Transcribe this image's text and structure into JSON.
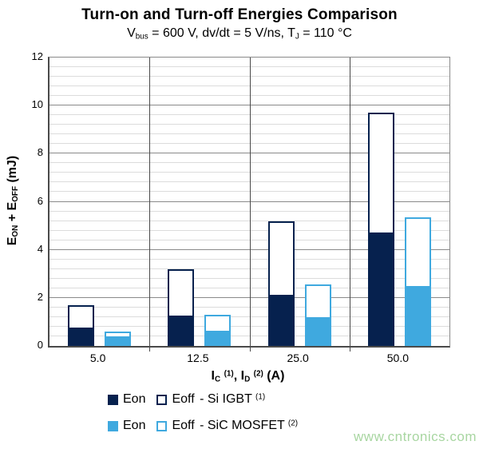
{
  "title": "Turn-on and Turn-off Energies Comparison",
  "subtitle": {
    "t1": "V",
    "sub1": "bus",
    "t2": " = 600 V, dv/dt = 5 V/ns, T",
    "sub2": "J",
    "t3": " = 110 °C"
  },
  "y_axis": {
    "t1": "E",
    "sub1": "ON",
    "t2": " + E",
    "sub2": "OFF",
    "t3": " (mJ)"
  },
  "x_axis": {
    "t1": "I",
    "sub1": "C",
    "sup1": "(1)",
    "t2": ", I",
    "sub2": "D",
    "sup2": "(2)",
    "t3": " (A)"
  },
  "legend": {
    "rows": [
      {
        "eon": "Eon",
        "eoff": "Eoff",
        "device": "- Si IGBT",
        "sup": "(1)"
      },
      {
        "eon": "Eon",
        "eoff": "Eoff",
        "device": "- SiC MOSFET",
        "sup": "(2)"
      }
    ]
  },
  "watermark": "www.cntronics.com",
  "colors": {
    "igbt_navy": "#06214e",
    "sic_blue": "#3fa9df",
    "minor_grid": "#dcdcdc",
    "major_grid": "#8a8a8a",
    "axis_line": "#4a4a4a",
    "watermark_green": "#a8d6a1"
  },
  "chart_data": {
    "type": "bar",
    "stacked": true,
    "title": "Turn-on and Turn-off Energies Comparison",
    "subtitle": "Vbus = 600 V, dv/dt = 5 V/ns, TJ = 110 °C",
    "xlabel": "IC (1), ID (2) (A)",
    "ylabel": "EON + EOFF (mJ)",
    "categories": [
      "5.0",
      "12.5",
      "25.0",
      "50.0"
    ],
    "series": [
      {
        "name": "Eon - Si IGBT",
        "style": "navy-fill",
        "values": [
          0.7,
          1.2,
          2.05,
          4.65
        ]
      },
      {
        "name": "Eoff - Si IGBT",
        "style": "navy-outline",
        "values": [
          1.0,
          2.0,
          3.15,
          5.05
        ]
      },
      {
        "name": "Eon - SiC MOSFET",
        "style": "blue-fill",
        "values": [
          0.33,
          0.57,
          1.12,
          2.42
        ]
      },
      {
        "name": "Eoff - SiC MOSFET",
        "style": "blue-outline",
        "values": [
          0.27,
          0.73,
          1.43,
          2.93
        ]
      }
    ],
    "stack_totals": {
      "si_igbt": [
        1.7,
        3.2,
        5.2,
        9.7
      ],
      "sic_mosfet": [
        0.6,
        1.3,
        2.55,
        5.35
      ]
    },
    "ylim": [
      0,
      12
    ],
    "y_ticks": [
      0,
      2,
      4,
      6,
      8,
      10,
      12
    ],
    "y_minor_step": 0.4,
    "grid": true,
    "legend_position": "bottom"
  }
}
